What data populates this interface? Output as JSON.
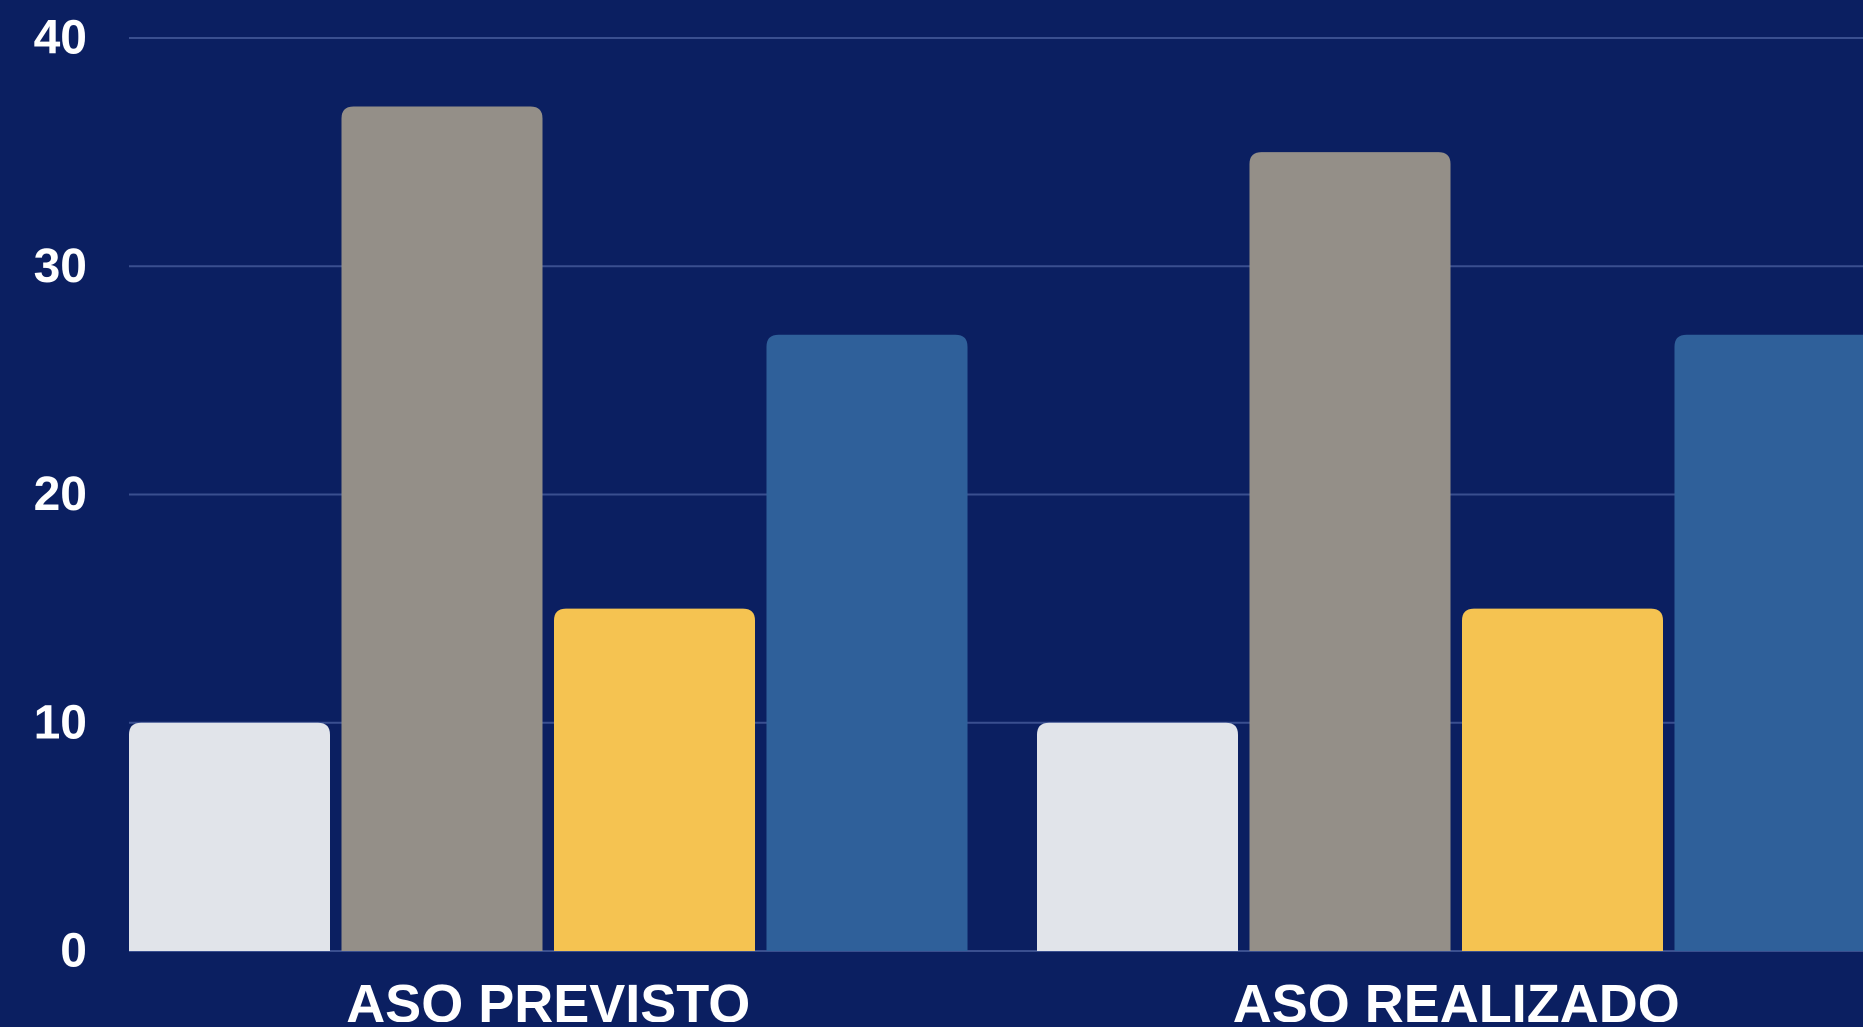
{
  "chart_data": {
    "type": "bar",
    "title": "",
    "xlabel": "",
    "ylabel": "",
    "categories": [
      "ASO PREVISTO",
      "ASO REALIZADO"
    ],
    "series": [
      {
        "color": "#e1e4ea",
        "values": [
          10,
          10
        ]
      },
      {
        "color": "#948f88",
        "values": [
          37,
          35
        ]
      },
      {
        "color": "#f5c351",
        "values": [
          15,
          15
        ]
      },
      {
        "color": "#2f609a",
        "values": [
          27,
          27
        ]
      }
    ],
    "ylim": [
      0,
      40
    ],
    "yticks": [
      "0",
      "10",
      "20",
      "30",
      "40"
    ],
    "grid": true,
    "background": "#0b1f61",
    "gridColor": "#3a4f8f",
    "textColor": "#ffffff"
  }
}
